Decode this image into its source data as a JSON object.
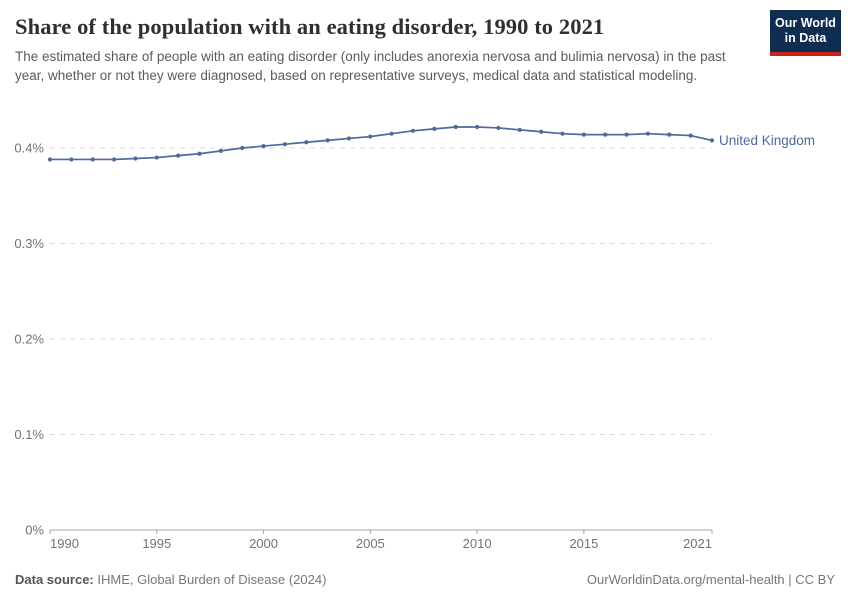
{
  "header": {
    "title": "Share of the population with an eating disorder, 1990 to 2021",
    "subtitle": "The estimated share of people with an eating disorder (only includes anorexia nervosa and bulimia nervosa) in the past year, whether or not they were diagnosed, based on representative surveys, medical data and statistical modeling.",
    "logo": {
      "line1": "Our World",
      "line2": "in Data"
    }
  },
  "chart_data": {
    "type": "line",
    "title": "Share of the population with an eating disorder, 1990 to 2021",
    "x": [
      1990,
      1991,
      1992,
      1993,
      1994,
      1995,
      1996,
      1997,
      1998,
      1999,
      2000,
      2001,
      2002,
      2003,
      2004,
      2005,
      2006,
      2007,
      2008,
      2009,
      2010,
      2011,
      2012,
      2013,
      2014,
      2015,
      2016,
      2017,
      2018,
      2019,
      2020,
      2021
    ],
    "series": [
      {
        "name": "United Kingdom",
        "color": "#4C6A9C",
        "values": [
          0.388,
          0.388,
          0.388,
          0.388,
          0.389,
          0.39,
          0.392,
          0.394,
          0.397,
          0.4,
          0.402,
          0.404,
          0.406,
          0.408,
          0.41,
          0.412,
          0.415,
          0.418,
          0.42,
          0.422,
          0.422,
          0.421,
          0.419,
          0.417,
          0.415,
          0.414,
          0.414,
          0.414,
          0.415,
          0.414,
          0.413,
          0.408
        ]
      }
    ],
    "x_ticks": [
      1990,
      1995,
      2000,
      2005,
      2010,
      2015,
      2021
    ],
    "y_ticks": [
      {
        "label": "0%",
        "value": 0
      },
      {
        "label": "0.1%",
        "value": 0.1
      },
      {
        "label": "0.2%",
        "value": 0.2
      },
      {
        "label": "0.3%",
        "value": 0.3
      },
      {
        "label": "0.4%",
        "value": 0.4
      }
    ],
    "xlim": [
      1990,
      2021
    ],
    "ylim": [
      0,
      0.4
    ],
    "unit": "%",
    "grid": "horizontal-dashed",
    "legend_position": "end-of-line-label"
  },
  "footer": {
    "datasource_label": "Data source:",
    "datasource_value": "IHME, Global Burden of Disease (2024)",
    "credit": "OurWorldinData.org/mental-health | CC BY"
  },
  "colors": {
    "line": "#4C6A9C",
    "logo_bg": "#0e2d51",
    "logo_accent": "#c8231c",
    "title_text": "#2f2f2f",
    "subtitle_text": "#5b5b5b",
    "axis_text": "#737373",
    "axis_line": "#a3a3a3",
    "grid": "#d9d9d9"
  }
}
